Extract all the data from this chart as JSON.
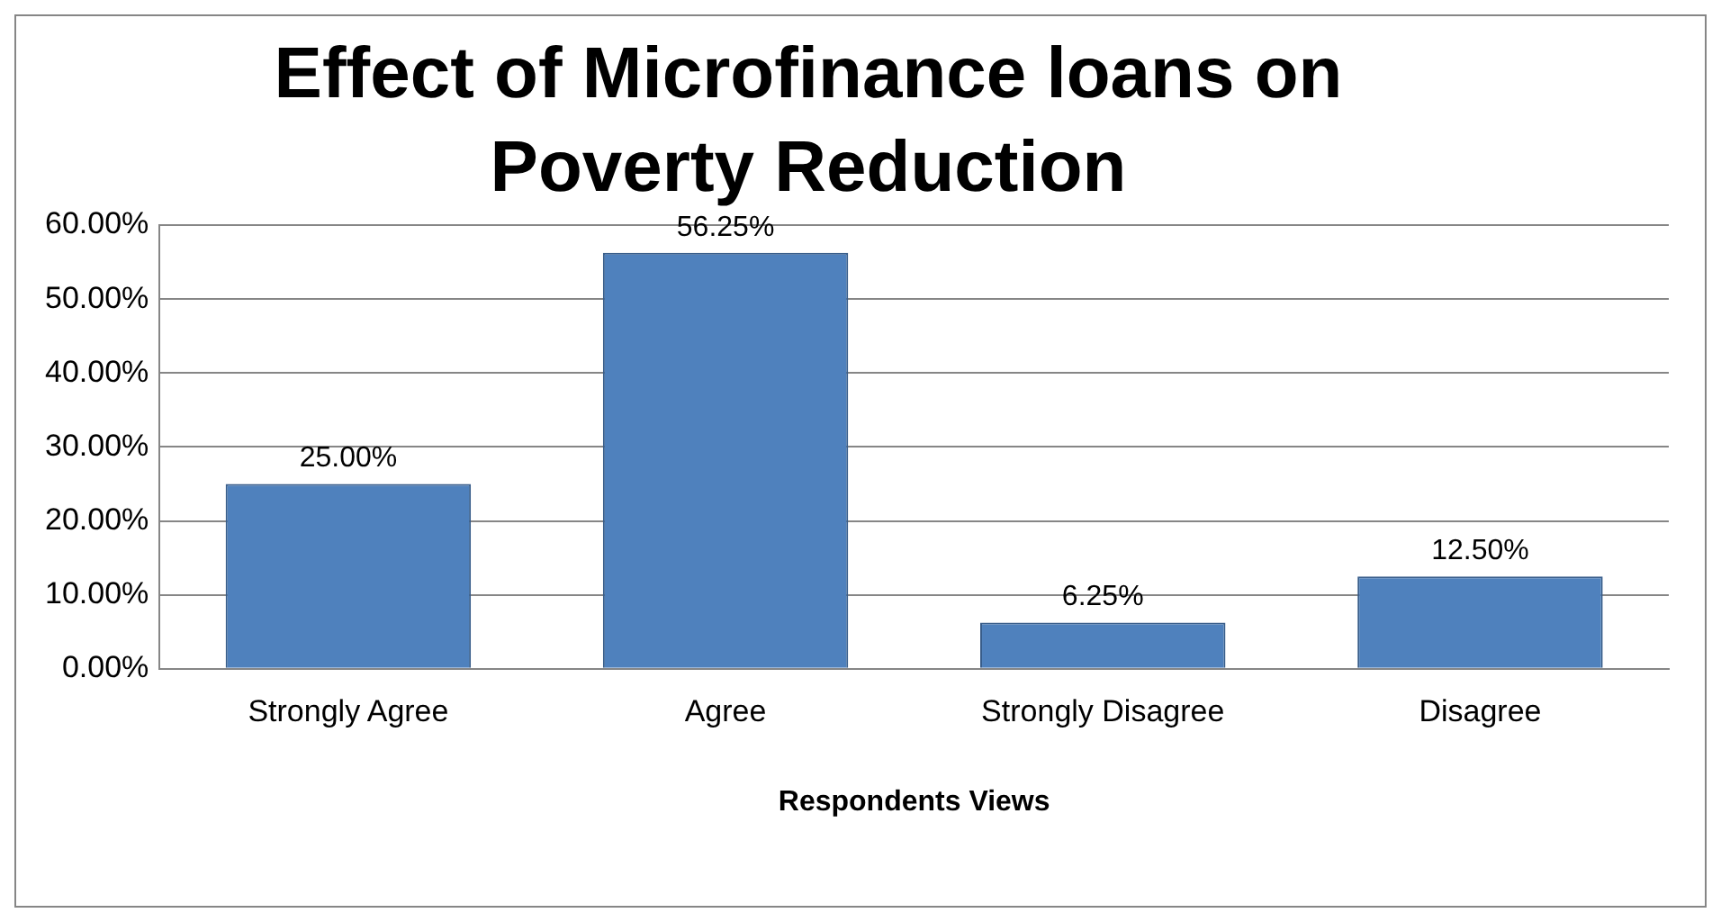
{
  "chart_data": {
    "type": "bar",
    "title": "Effect of Microfinance loans on Poverty Reduction",
    "xlabel": "Respondents Views",
    "categories": [
      "Strongly Agree",
      "Agree",
      "Strongly Disagree",
      "Disagree"
    ],
    "values": [
      25,
      56.25,
      6.25,
      12.5
    ],
    "value_labels": [
      "25.00%",
      "56.25%",
      "6.25%",
      "12.50%"
    ],
    "color": "#4f81bd",
    "ylim": [
      0,
      60
    ],
    "yticks": [
      {
        "value": 0,
        "label": "0.00%"
      },
      {
        "value": 10,
        "label": "10.00%"
      },
      {
        "value": 20,
        "label": "20.00%"
      },
      {
        "value": 30,
        "label": "30.00%"
      },
      {
        "value": 40,
        "label": "40.00%"
      },
      {
        "value": 50,
        "label": "50.00%"
      },
      {
        "value": 60,
        "label": "60.00%"
      }
    ],
    "grid": "y"
  }
}
